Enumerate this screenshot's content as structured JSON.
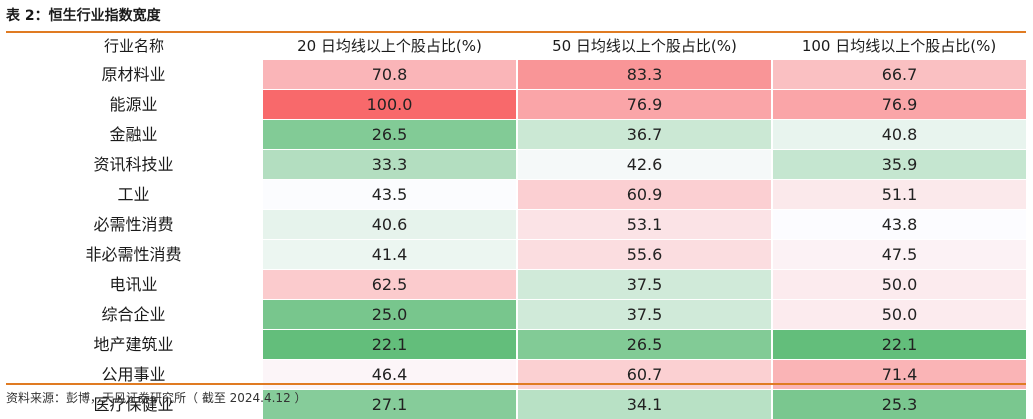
{
  "title": "表 2：恒生行业指数宽度",
  "header": {
    "sector": "行业名称",
    "ma20": "20 日均线以上个股占比(%)",
    "ma50": "50 日均线以上个股占比(%)",
    "ma100": "100 日均线以上个股占比(%)"
  },
  "rows": [
    {
      "sector": "原材料业",
      "ma20": "70.8",
      "ma50": "83.3",
      "ma100": "66.7"
    },
    {
      "sector": "能源业",
      "ma20": "100.0",
      "ma50": "76.9",
      "ma100": "76.9"
    },
    {
      "sector": "金融业",
      "ma20": "26.5",
      "ma50": "36.7",
      "ma100": "40.8"
    },
    {
      "sector": "资讯科技业",
      "ma20": "33.3",
      "ma50": "42.6",
      "ma100": "35.9"
    },
    {
      "sector": "工业",
      "ma20": "43.5",
      "ma50": "60.9",
      "ma100": "51.1"
    },
    {
      "sector": "必需性消费",
      "ma20": "40.6",
      "ma50": "53.1",
      "ma100": "43.8"
    },
    {
      "sector": "非必需性消费",
      "ma20": "41.4",
      "ma50": "55.6",
      "ma100": "47.5"
    },
    {
      "sector": "电讯业",
      "ma20": "62.5",
      "ma50": "37.5",
      "ma100": "50.0"
    },
    {
      "sector": "综合企业",
      "ma20": "25.0",
      "ma50": "37.5",
      "ma100": "50.0"
    },
    {
      "sector": "地产建筑业",
      "ma20": "22.1",
      "ma50": "26.5",
      "ma100": "22.1"
    },
    {
      "sector": "公用事业",
      "ma20": "46.4",
      "ma50": "60.7",
      "ma100": "71.4"
    },
    {
      "sector": "医疗保健业",
      "ma20": "27.1",
      "ma50": "34.1",
      "ma100": "25.3"
    }
  ],
  "colors": {
    "rule": "#e07b22",
    "high": "#f8696b",
    "mid": "#fcfcff",
    "low": "#63be7b"
  },
  "source": "资料来源：彭博，天风证券研究所（ 截至 2024.4.12 ）"
}
